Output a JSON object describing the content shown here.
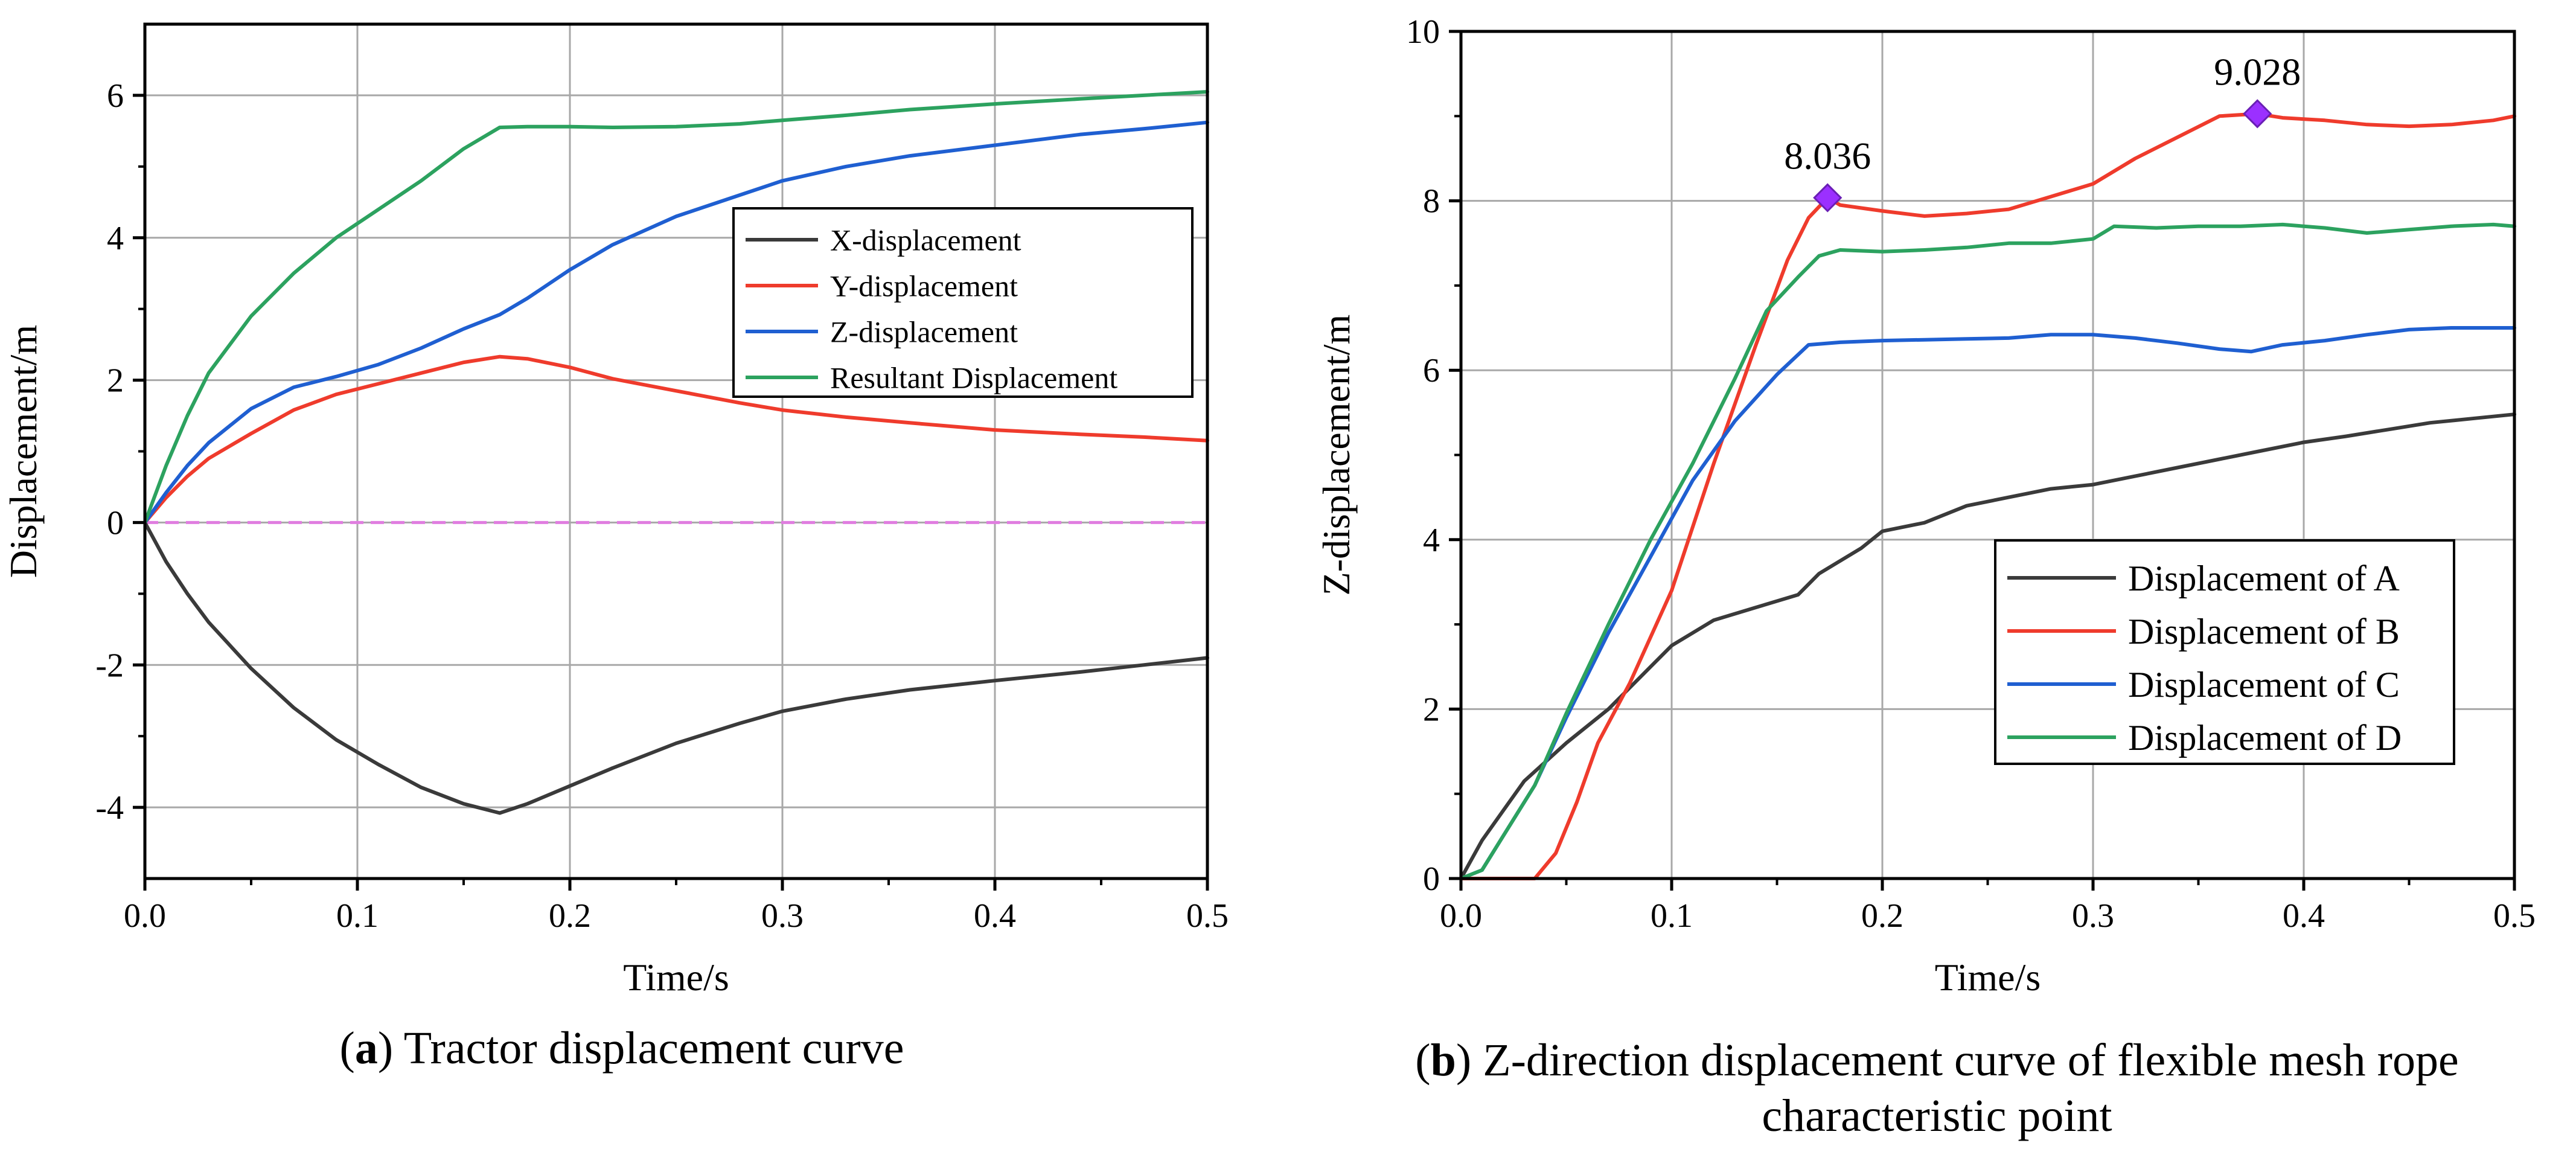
{
  "captions": {
    "a": {
      "letter": "a",
      "text": " Tractor displacement curve"
    },
    "b": {
      "letter": "b",
      "line1": " Z-direction displacement curve of flexible mesh rope",
      "line2": "characteristic point"
    }
  },
  "chart_data": [
    {
      "id": "a",
      "type": "line",
      "title": "",
      "xlabel": "Time/s",
      "ylabel": "Displacement/m",
      "xlim": [
        0,
        0.5
      ],
      "ylim": [
        -5,
        7
      ],
      "xticks": [
        0.0,
        0.1,
        0.2,
        0.3,
        0.4,
        0.5
      ],
      "xtick_labels": [
        "0.0",
        "0.1",
        "0.2",
        "0.3",
        "0.4",
        "0.5"
      ],
      "yticks": [
        -4,
        -2,
        0,
        2,
        4,
        6
      ],
      "ytick_labels": [
        "-4",
        "-2",
        "0",
        "2",
        "4",
        "6"
      ],
      "grid": true,
      "legend_position": "top-right",
      "reference_line": {
        "y": 0,
        "color": "#e07de0",
        "dashed": true
      },
      "series": [
        {
          "name": "X-displacement",
          "color": "#3a3a3a",
          "points": [
            [
              0,
              0
            ],
            [
              0.01,
              -0.55
            ],
            [
              0.02,
              -1.0
            ],
            [
              0.03,
              -1.4
            ],
            [
              0.05,
              -2.05
            ],
            [
              0.07,
              -2.6
            ],
            [
              0.09,
              -3.05
            ],
            [
              0.11,
              -3.4
            ],
            [
              0.13,
              -3.72
            ],
            [
              0.15,
              -3.95
            ],
            [
              0.167,
              -4.08
            ],
            [
              0.18,
              -3.95
            ],
            [
              0.2,
              -3.7
            ],
            [
              0.22,
              -3.45
            ],
            [
              0.25,
              -3.1
            ],
            [
              0.28,
              -2.82
            ],
            [
              0.3,
              -2.65
            ],
            [
              0.33,
              -2.48
            ],
            [
              0.36,
              -2.35
            ],
            [
              0.4,
              -2.22
            ],
            [
              0.44,
              -2.1
            ],
            [
              0.47,
              -2.0
            ],
            [
              0.5,
              -1.9
            ]
          ]
        },
        {
          "name": "Y-displacement",
          "color": "#ef3b2c",
          "points": [
            [
              0,
              0
            ],
            [
              0.01,
              0.35
            ],
            [
              0.02,
              0.65
            ],
            [
              0.03,
              0.9
            ],
            [
              0.05,
              1.25
            ],
            [
              0.07,
              1.58
            ],
            [
              0.09,
              1.8
            ],
            [
              0.11,
              1.95
            ],
            [
              0.13,
              2.1
            ],
            [
              0.15,
              2.25
            ],
            [
              0.167,
              2.33
            ],
            [
              0.18,
              2.3
            ],
            [
              0.2,
              2.18
            ],
            [
              0.22,
              2.02
            ],
            [
              0.25,
              1.85
            ],
            [
              0.28,
              1.68
            ],
            [
              0.3,
              1.58
            ],
            [
              0.33,
              1.48
            ],
            [
              0.36,
              1.4
            ],
            [
              0.4,
              1.3
            ],
            [
              0.44,
              1.24
            ],
            [
              0.47,
              1.2
            ],
            [
              0.5,
              1.15
            ]
          ]
        },
        {
          "name": "Z-displacement",
          "color": "#1f5fd1",
          "points": [
            [
              0,
              0
            ],
            [
              0.01,
              0.42
            ],
            [
              0.02,
              0.8
            ],
            [
              0.03,
              1.12
            ],
            [
              0.05,
              1.6
            ],
            [
              0.07,
              1.9
            ],
            [
              0.09,
              2.05
            ],
            [
              0.11,
              2.22
            ],
            [
              0.13,
              2.45
            ],
            [
              0.15,
              2.72
            ],
            [
              0.167,
              2.92
            ],
            [
              0.18,
              3.15
            ],
            [
              0.2,
              3.55
            ],
            [
              0.22,
              3.9
            ],
            [
              0.25,
              4.3
            ],
            [
              0.28,
              4.6
            ],
            [
              0.3,
              4.8
            ],
            [
              0.33,
              5.0
            ],
            [
              0.36,
              5.15
            ],
            [
              0.4,
              5.3
            ],
            [
              0.44,
              5.45
            ],
            [
              0.47,
              5.53
            ],
            [
              0.5,
              5.62
            ]
          ]
        },
        {
          "name": "Resultant Displacement",
          "color": "#2ca25f",
          "points": [
            [
              0,
              0
            ],
            [
              0.01,
              0.8
            ],
            [
              0.02,
              1.5
            ],
            [
              0.03,
              2.1
            ],
            [
              0.05,
              2.9
            ],
            [
              0.07,
              3.5
            ],
            [
              0.09,
              4.0
            ],
            [
              0.11,
              4.4
            ],
            [
              0.13,
              4.8
            ],
            [
              0.15,
              5.25
            ],
            [
              0.167,
              5.55
            ],
            [
              0.18,
              5.56
            ],
            [
              0.2,
              5.56
            ],
            [
              0.22,
              5.55
            ],
            [
              0.25,
              5.56
            ],
            [
              0.28,
              5.6
            ],
            [
              0.3,
              5.65
            ],
            [
              0.33,
              5.72
            ],
            [
              0.36,
              5.8
            ],
            [
              0.4,
              5.88
            ],
            [
              0.44,
              5.95
            ],
            [
              0.47,
              6.0
            ],
            [
              0.5,
              6.05
            ]
          ]
        }
      ]
    },
    {
      "id": "b",
      "type": "line",
      "title": "",
      "xlabel": "Time/s",
      "ylabel": "Z-displacement/m",
      "xlim": [
        0,
        0.5
      ],
      "ylim": [
        0,
        10
      ],
      "xticks": [
        0.0,
        0.1,
        0.2,
        0.3,
        0.4,
        0.5
      ],
      "xtick_labels": [
        "0.0",
        "0.1",
        "0.2",
        "0.3",
        "0.4",
        "0.5"
      ],
      "yticks": [
        0,
        2,
        4,
        6,
        8,
        10
      ],
      "ytick_labels": [
        "0",
        "2",
        "4",
        "6",
        "8",
        "10"
      ],
      "grid": true,
      "legend_position": "bottom-right",
      "annotations": [
        {
          "label": "8.036",
          "x": 0.174,
          "y": 8.036,
          "color": "#9b30ff"
        },
        {
          "label": "9.028",
          "x": 0.378,
          "y": 9.028,
          "color": "#9b30ff"
        }
      ],
      "series": [
        {
          "name": "Displacement of A",
          "color": "#3a3a3a",
          "points": [
            [
              0,
              0
            ],
            [
              0.01,
              0.45
            ],
            [
              0.02,
              0.8
            ],
            [
              0.03,
              1.15
            ],
            [
              0.05,
              1.6
            ],
            [
              0.07,
              2.0
            ],
            [
              0.09,
              2.5
            ],
            [
              0.1,
              2.75
            ],
            [
              0.12,
              3.05
            ],
            [
              0.14,
              3.2
            ],
            [
              0.16,
              3.35
            ],
            [
              0.17,
              3.6
            ],
            [
              0.19,
              3.9
            ],
            [
              0.2,
              4.1
            ],
            [
              0.22,
              4.2
            ],
            [
              0.24,
              4.4
            ],
            [
              0.26,
              4.5
            ],
            [
              0.28,
              4.6
            ],
            [
              0.3,
              4.65
            ],
            [
              0.32,
              4.75
            ],
            [
              0.34,
              4.85
            ],
            [
              0.36,
              4.95
            ],
            [
              0.38,
              5.05
            ],
            [
              0.4,
              5.15
            ],
            [
              0.42,
              5.22
            ],
            [
              0.44,
              5.3
            ],
            [
              0.46,
              5.38
            ],
            [
              0.48,
              5.43
            ],
            [
              0.5,
              5.48
            ]
          ]
        },
        {
          "name": "Displacement of B",
          "color": "#ef3b2c",
          "points": [
            [
              0,
              0
            ],
            [
              0.035,
              0
            ],
            [
              0.045,
              0.3
            ],
            [
              0.055,
              0.9
            ],
            [
              0.065,
              1.6
            ],
            [
              0.08,
              2.3
            ],
            [
              0.1,
              3.4
            ],
            [
              0.12,
              4.9
            ],
            [
              0.14,
              6.3
            ],
            [
              0.155,
              7.3
            ],
            [
              0.165,
              7.8
            ],
            [
              0.174,
              8.036
            ],
            [
              0.18,
              7.95
            ],
            [
              0.2,
              7.88
            ],
            [
              0.22,
              7.82
            ],
            [
              0.24,
              7.85
            ],
            [
              0.26,
              7.9
            ],
            [
              0.28,
              8.05
            ],
            [
              0.3,
              8.2
            ],
            [
              0.32,
              8.5
            ],
            [
              0.34,
              8.75
            ],
            [
              0.36,
              9.0
            ],
            [
              0.378,
              9.028
            ],
            [
              0.39,
              8.98
            ],
            [
              0.41,
              8.95
            ],
            [
              0.43,
              8.9
            ],
            [
              0.45,
              8.88
            ],
            [
              0.47,
              8.9
            ],
            [
              0.49,
              8.95
            ],
            [
              0.5,
              9.0
            ]
          ]
        },
        {
          "name": "Displacement of C",
          "color": "#1f5fd1",
          "points": [
            [
              0,
              0
            ],
            [
              0.01,
              0.1
            ],
            [
              0.02,
              0.5
            ],
            [
              0.035,
              1.1
            ],
            [
              0.05,
              1.9
            ],
            [
              0.07,
              2.9
            ],
            [
              0.09,
              3.8
            ],
            [
              0.11,
              4.7
            ],
            [
              0.13,
              5.4
            ],
            [
              0.15,
              5.95
            ],
            [
              0.165,
              6.3
            ],
            [
              0.18,
              6.33
            ],
            [
              0.2,
              6.35
            ],
            [
              0.22,
              6.36
            ],
            [
              0.24,
              6.37
            ],
            [
              0.26,
              6.38
            ],
            [
              0.28,
              6.42
            ],
            [
              0.3,
              6.42
            ],
            [
              0.32,
              6.38
            ],
            [
              0.34,
              6.32
            ],
            [
              0.36,
              6.25
            ],
            [
              0.375,
              6.22
            ],
            [
              0.39,
              6.3
            ],
            [
              0.41,
              6.35
            ],
            [
              0.43,
              6.42
            ],
            [
              0.45,
              6.48
            ],
            [
              0.47,
              6.5
            ],
            [
              0.5,
              6.5
            ]
          ]
        },
        {
          "name": "Displacement of D",
          "color": "#2ca25f",
          "points": [
            [
              0,
              0
            ],
            [
              0.01,
              0.1
            ],
            [
              0.02,
              0.5
            ],
            [
              0.035,
              1.1
            ],
            [
              0.05,
              1.95
            ],
            [
              0.07,
              3.0
            ],
            [
              0.09,
              4.0
            ],
            [
              0.11,
              4.9
            ],
            [
              0.13,
              5.9
            ],
            [
              0.145,
              6.7
            ],
            [
              0.16,
              7.1
            ],
            [
              0.17,
              7.35
            ],
            [
              0.18,
              7.42
            ],
            [
              0.2,
              7.4
            ],
            [
              0.22,
              7.42
            ],
            [
              0.24,
              7.45
            ],
            [
              0.26,
              7.5
            ],
            [
              0.28,
              7.5
            ],
            [
              0.3,
              7.55
            ],
            [
              0.31,
              7.7
            ],
            [
              0.33,
              7.68
            ],
            [
              0.35,
              7.7
            ],
            [
              0.37,
              7.7
            ],
            [
              0.39,
              7.72
            ],
            [
              0.41,
              7.68
            ],
            [
              0.43,
              7.62
            ],
            [
              0.45,
              7.66
            ],
            [
              0.47,
              7.7
            ],
            [
              0.49,
              7.72
            ],
            [
              0.5,
              7.7
            ]
          ]
        }
      ]
    }
  ]
}
